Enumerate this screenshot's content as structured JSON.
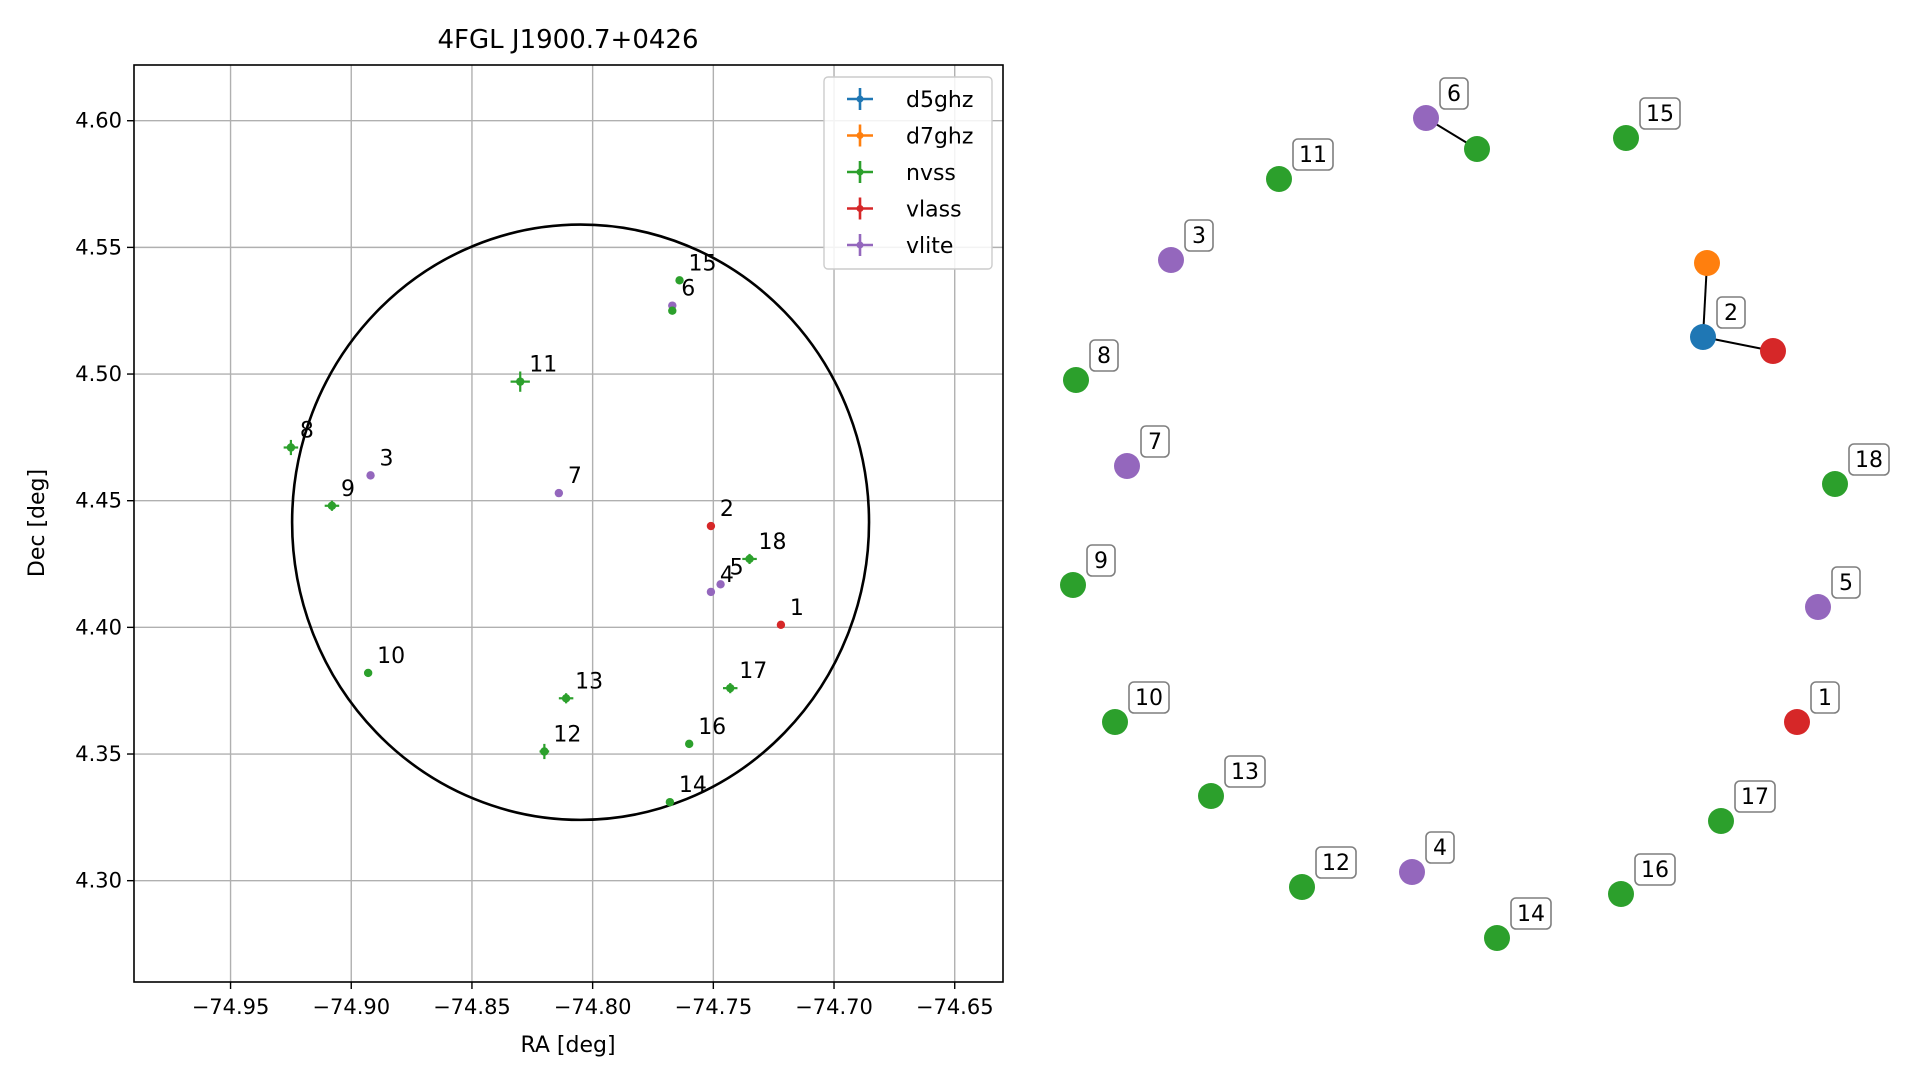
{
  "colors": {
    "d5ghz": "#1f77b4",
    "d7ghz": "#ff7f0e",
    "nvss": "#2ca02c",
    "vlass": "#d62728",
    "vlite": "#9467bd"
  },
  "chart_data": [
    {
      "type": "scatter",
      "title": "4FGL J1900.7+0426",
      "xlabel": "RA [deg]",
      "ylabel": "Dec [deg]",
      "xlim": [
        -74.99,
        -74.63
      ],
      "ylim": [
        4.26,
        4.622
      ],
      "xticks": [
        -74.95,
        -74.9,
        -74.85,
        -74.8,
        -74.75,
        -74.7,
        -74.65
      ],
      "xtick_labels": [
        "−74.95",
        "−74.90",
        "−74.85",
        "−74.80",
        "−74.75",
        "−74.70",
        "−74.65"
      ],
      "yticks": [
        4.3,
        4.35,
        4.4,
        4.45,
        4.5,
        4.55,
        4.6
      ],
      "ytick_labels": [
        "4.30",
        "4.35",
        "4.40",
        "4.45",
        "4.50",
        "4.55",
        "4.60"
      ],
      "grid": true,
      "legend_position": "top-right",
      "legend": [
        "d5ghz",
        "d7ghz",
        "nvss",
        "vlass",
        "vlite"
      ],
      "ellipse": {
        "center": [
          -74.805,
          4.4415
        ],
        "ra_semi_axis": 0.1195,
        "dec_semi_axis": 0.1175
      },
      "points": [
        {
          "label": "1",
          "survey": "vlass",
          "ra": -74.722,
          "dec": 4.401,
          "err_ra": 0.001,
          "err_dec": 0.001
        },
        {
          "label": "2",
          "survey": "vlass",
          "ra": -74.751,
          "dec": 4.44,
          "err_ra": 0.001,
          "err_dec": 0.001
        },
        {
          "label": "3",
          "survey": "vlite",
          "ra": -74.892,
          "dec": 4.46,
          "err_ra": 0.001,
          "err_dec": 0.001
        },
        {
          "label": "4",
          "survey": "vlite",
          "ra": -74.751,
          "dec": 4.414,
          "err_ra": 0.001,
          "err_dec": 0.001
        },
        {
          "label": "5",
          "survey": "vlite",
          "ra": -74.747,
          "dec": 4.417,
          "err_ra": 0.001,
          "err_dec": 0.001
        },
        {
          "label": "6",
          "survey": "vlite",
          "ra": -74.767,
          "dec": 4.527,
          "err_ra": 0.001,
          "err_dec": 0.001
        },
        {
          "label": "7",
          "survey": "vlite",
          "ra": -74.814,
          "dec": 4.453,
          "err_ra": 0.001,
          "err_dec": 0.001
        },
        {
          "label": "8",
          "survey": "nvss",
          "ra": -74.925,
          "dec": 4.471,
          "err_ra": 0.003,
          "err_dec": 0.003
        },
        {
          "label": "9",
          "survey": "nvss",
          "ra": -74.908,
          "dec": 4.448,
          "err_ra": 0.003,
          "err_dec": 0.002
        },
        {
          "label": "10",
          "survey": "nvss",
          "ra": -74.893,
          "dec": 4.382,
          "err_ra": 0.001,
          "err_dec": 0.001
        },
        {
          "label": "11",
          "survey": "nvss",
          "ra": -74.83,
          "dec": 4.497,
          "err_ra": 0.004,
          "err_dec": 0.004
        },
        {
          "label": "12",
          "survey": "nvss",
          "ra": -74.82,
          "dec": 4.351,
          "err_ra": 0.002,
          "err_dec": 0.003
        },
        {
          "label": "13",
          "survey": "nvss",
          "ra": -74.811,
          "dec": 4.372,
          "err_ra": 0.003,
          "err_dec": 0.002
        },
        {
          "label": "14",
          "survey": "nvss",
          "ra": -74.768,
          "dec": 4.331,
          "err_ra": 0.001,
          "err_dec": 0.001
        },
        {
          "label": "15",
          "survey": "nvss",
          "ra": -74.764,
          "dec": 4.537,
          "err_ra": 0.001,
          "err_dec": 0.001
        },
        {
          "label": "16",
          "survey": "nvss",
          "ra": -74.76,
          "dec": 4.354,
          "err_ra": 0.001,
          "err_dec": 0.001
        },
        {
          "label": "17",
          "survey": "nvss",
          "ra": -74.743,
          "dec": 4.376,
          "err_ra": 0.003,
          "err_dec": 0.002
        },
        {
          "label": "18",
          "survey": "nvss",
          "ra": -74.735,
          "dec": 4.427,
          "err_ra": 0.003,
          "err_dec": 0.002
        },
        {
          "label": "",
          "survey": "nvss",
          "ra": -74.767,
          "dec": 4.525,
          "err_ra": 0.001,
          "err_dec": 0.001
        }
      ]
    },
    {
      "type": "diagram",
      "nodes": [
        {
          "label": "6",
          "survey": "vlite"
        },
        {
          "label": "",
          "survey": "nvss"
        },
        {
          "label": "15",
          "survey": "nvss"
        },
        {
          "label": "11",
          "survey": "nvss"
        },
        {
          "label": "3",
          "survey": "vlite"
        },
        {
          "label": "",
          "survey": "d7ghz"
        },
        {
          "label": "2",
          "survey": "d5ghz"
        },
        {
          "label": "",
          "survey": "vlass"
        },
        {
          "label": "8",
          "survey": "nvss"
        },
        {
          "label": "7",
          "survey": "vlite"
        },
        {
          "label": "18",
          "survey": "nvss"
        },
        {
          "label": "9",
          "survey": "nvss"
        },
        {
          "label": "5",
          "survey": "vlite"
        },
        {
          "label": "10",
          "survey": "nvss"
        },
        {
          "label": "1",
          "survey": "vlass"
        },
        {
          "label": "13",
          "survey": "nvss"
        },
        {
          "label": "17",
          "survey": "nvss"
        },
        {
          "label": "12",
          "survey": "nvss"
        },
        {
          "label": "4",
          "survey": "vlite"
        },
        {
          "label": "16",
          "survey": "nvss"
        },
        {
          "label": "14",
          "survey": "nvss"
        }
      ],
      "edges": [
        [
          0,
          1
        ],
        [
          6,
          5
        ],
        [
          6,
          7
        ]
      ]
    }
  ]
}
